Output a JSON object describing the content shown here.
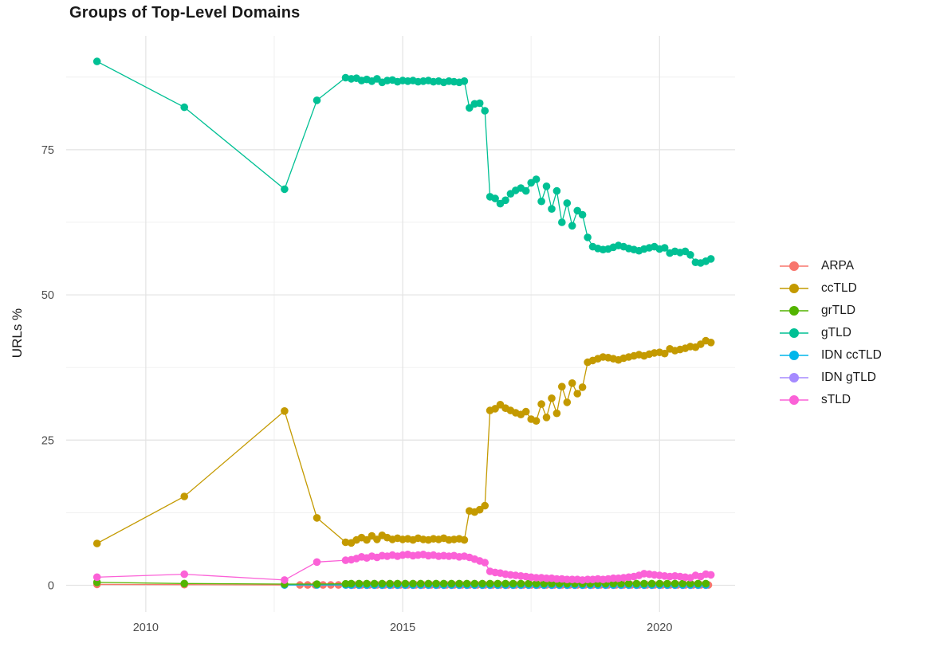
{
  "chart_data": {
    "type": "line",
    "title": "Groups of Top-Level Domains",
    "xlabel": "",
    "ylabel": "URLs %",
    "grid": true,
    "legend_position": "right",
    "xlim": [
      2008.45,
      2021.47
    ],
    "ylim": [
      -4.6,
      94.6
    ],
    "x_ticks": [
      [
        2010,
        "2010"
      ],
      [
        2015,
        "2015"
      ],
      [
        2020,
        "2020"
      ]
    ],
    "x_minor": [
      2012.5,
      2017.5
    ],
    "y_ticks": [
      [
        0,
        "0"
      ],
      [
        25,
        "25"
      ],
      [
        50,
        "50"
      ],
      [
        75,
        "75"
      ]
    ],
    "y_minor": [
      12.5,
      37.5,
      62.5,
      87.5
    ],
    "draw_order": [
      "ARPA",
      "IDN gTLD",
      "IDN ccTLD",
      "grTLD",
      "sTLD",
      "ccTLD",
      "gTLD"
    ],
    "series": [
      {
        "name": "ARPA",
        "color": "#F8766D",
        "points": [
          [
            2009.05,
            0.15
          ],
          [
            2010.75,
            0.1
          ],
          [
            2012.7,
            0.05
          ]
        ],
        "flat": {
          "from": 2013.0,
          "to": 2021.0,
          "step": 0.15,
          "value": 0.05
        }
      },
      {
        "name": "ccTLD",
        "color": "#C49A00",
        "points": [
          [
            2009.05,
            7.2
          ],
          [
            2010.75,
            15.3
          ],
          [
            2012.7,
            30
          ],
          [
            2013.33,
            11.6
          ],
          [
            2013.89,
            7.4
          ],
          [
            2014,
            7.3
          ],
          [
            2014.1,
            7.8
          ],
          [
            2014.2,
            8.2
          ],
          [
            2014.3,
            7.8
          ],
          [
            2014.4,
            8.5
          ],
          [
            2014.5,
            7.9
          ],
          [
            2014.6,
            8.6
          ],
          [
            2014.7,
            8.2
          ],
          [
            2014.8,
            7.9
          ],
          [
            2014.9,
            8.1
          ],
          [
            2015,
            7.9
          ],
          [
            2015.1,
            8
          ],
          [
            2015.2,
            7.8
          ],
          [
            2015.3,
            8.1
          ],
          [
            2015.4,
            7.9
          ],
          [
            2015.5,
            7.8
          ],
          [
            2015.6,
            8
          ],
          [
            2015.7,
            7.9
          ],
          [
            2015.8,
            8.1
          ],
          [
            2015.9,
            7.8
          ],
          [
            2016,
            7.9
          ],
          [
            2016.1,
            8
          ],
          [
            2016.2,
            7.8
          ],
          [
            2016.3,
            12.8
          ],
          [
            2016.4,
            12.6
          ],
          [
            2016.5,
            13
          ],
          [
            2016.6,
            13.7
          ],
          [
            2016.7,
            30.1
          ],
          [
            2016.8,
            30.4
          ],
          [
            2016.9,
            31.1
          ],
          [
            2017,
            30.5
          ],
          [
            2017.1,
            30.1
          ],
          [
            2017.2,
            29.7
          ],
          [
            2017.3,
            29.4
          ],
          [
            2017.4,
            29.9
          ],
          [
            2017.5,
            28.6
          ],
          [
            2017.6,
            28.3
          ],
          [
            2017.7,
            31.2
          ],
          [
            2017.8,
            28.9
          ],
          [
            2017.9,
            32.2
          ],
          [
            2018,
            29.6
          ],
          [
            2018.1,
            34.2
          ],
          [
            2018.2,
            31.5
          ],
          [
            2018.3,
            34.8
          ],
          [
            2018.4,
            33
          ],
          [
            2018.5,
            34.1
          ],
          [
            2018.6,
            38.4
          ],
          [
            2018.7,
            38.7
          ],
          [
            2018.8,
            39
          ],
          [
            2018.9,
            39.3
          ],
          [
            2019,
            39.2
          ],
          [
            2019.1,
            39
          ],
          [
            2019.2,
            38.8
          ],
          [
            2019.3,
            39.1
          ],
          [
            2019.4,
            39.3
          ],
          [
            2019.5,
            39.5
          ],
          [
            2019.6,
            39.7
          ],
          [
            2019.7,
            39.5
          ],
          [
            2019.8,
            39.8
          ],
          [
            2019.9,
            40
          ],
          [
            2020,
            40.1
          ],
          [
            2020.1,
            39.9
          ],
          [
            2020.2,
            40.7
          ],
          [
            2020.3,
            40.4
          ],
          [
            2020.4,
            40.6
          ],
          [
            2020.5,
            40.8
          ],
          [
            2020.6,
            41.1
          ],
          [
            2020.7,
            41
          ],
          [
            2020.8,
            41.5
          ],
          [
            2020.9,
            42.1
          ],
          [
            2021,
            41.8
          ]
        ]
      },
      {
        "name": "grTLD",
        "color": "#53B400",
        "points": [
          [
            2009.05,
            0.5
          ],
          [
            2010.75,
            0.3
          ],
          [
            2012.7,
            0.2
          ],
          [
            2013.33,
            0.2
          ],
          [
            2013.89,
            0.25
          ]
        ],
        "flat": {
          "from": 2014.0,
          "to": 2021.0,
          "step": 0.15,
          "value": 0.28
        }
      },
      {
        "name": "gTLD",
        "color": "#00C094",
        "points": [
          [
            2009.05,
            90.2
          ],
          [
            2010.75,
            82.3
          ],
          [
            2012.7,
            68.2
          ],
          [
            2013.33,
            83.5
          ],
          [
            2013.89,
            87.4
          ],
          [
            2014,
            87.2
          ],
          [
            2014.1,
            87.3
          ],
          [
            2014.2,
            86.9
          ],
          [
            2014.3,
            87.1
          ],
          [
            2014.4,
            86.8
          ],
          [
            2014.5,
            87.2
          ],
          [
            2014.6,
            86.6
          ],
          [
            2014.7,
            86.9
          ],
          [
            2014.8,
            87
          ],
          [
            2014.9,
            86.7
          ],
          [
            2015,
            86.9
          ],
          [
            2015.1,
            86.8
          ],
          [
            2015.2,
            86.9
          ],
          [
            2015.3,
            86.7
          ],
          [
            2015.4,
            86.8
          ],
          [
            2015.5,
            86.9
          ],
          [
            2015.6,
            86.7
          ],
          [
            2015.7,
            86.8
          ],
          [
            2015.8,
            86.6
          ],
          [
            2015.9,
            86.8
          ],
          [
            2016,
            86.7
          ],
          [
            2016.1,
            86.6
          ],
          [
            2016.2,
            86.8
          ],
          [
            2016.3,
            82.2
          ],
          [
            2016.4,
            82.9
          ],
          [
            2016.5,
            83
          ],
          [
            2016.6,
            81.7
          ],
          [
            2016.7,
            66.9
          ],
          [
            2016.8,
            66.6
          ],
          [
            2016.9,
            65.7
          ],
          [
            2017,
            66.3
          ],
          [
            2017.1,
            67.4
          ],
          [
            2017.2,
            68
          ],
          [
            2017.3,
            68.4
          ],
          [
            2017.4,
            67.9
          ],
          [
            2017.5,
            69.3
          ],
          [
            2017.6,
            69.9
          ],
          [
            2017.7,
            66.1
          ],
          [
            2017.8,
            68.7
          ],
          [
            2017.9,
            64.8
          ],
          [
            2018,
            67.9
          ],
          [
            2018.1,
            62.5
          ],
          [
            2018.2,
            65.8
          ],
          [
            2018.3,
            61.9
          ],
          [
            2018.4,
            64.5
          ],
          [
            2018.5,
            63.8
          ],
          [
            2018.6,
            59.9
          ],
          [
            2018.7,
            58.3
          ],
          [
            2018.8,
            58
          ],
          [
            2018.9,
            57.8
          ],
          [
            2019,
            57.9
          ],
          [
            2019.1,
            58.2
          ],
          [
            2019.2,
            58.5
          ],
          [
            2019.3,
            58.3
          ],
          [
            2019.4,
            58
          ],
          [
            2019.5,
            57.8
          ],
          [
            2019.6,
            57.6
          ],
          [
            2019.7,
            57.9
          ],
          [
            2019.8,
            58.1
          ],
          [
            2019.9,
            58.3
          ],
          [
            2020,
            57.9
          ],
          [
            2020.1,
            58.1
          ],
          [
            2020.2,
            57.2
          ],
          [
            2020.3,
            57.5
          ],
          [
            2020.4,
            57.3
          ],
          [
            2020.5,
            57.5
          ],
          [
            2020.6,
            56.9
          ],
          [
            2020.7,
            55.6
          ],
          [
            2020.8,
            55.5
          ],
          [
            2020.9,
            55.8
          ],
          [
            2021,
            56.2
          ]
        ]
      },
      {
        "name": "IDN ccTLD",
        "color": "#00B6EB",
        "points": [
          [
            2012.7,
            0.05
          ],
          [
            2013.33,
            0.05
          ],
          [
            2013.89,
            0.05
          ]
        ],
        "flat": {
          "from": 2014.0,
          "to": 2021.0,
          "step": 0.15,
          "value": 0.05
        }
      },
      {
        "name": "IDN gTLD",
        "color": "#A58AFF",
        "points": [],
        "flat": {
          "from": 2014.0,
          "to": 2021.0,
          "step": 0.15,
          "value": 0.0
        }
      },
      {
        "name": "sTLD",
        "color": "#FB61D7",
        "points": [
          [
            2009.05,
            1.4
          ],
          [
            2010.75,
            1.9
          ],
          [
            2012.7,
            0.9
          ],
          [
            2013.33,
            4
          ],
          [
            2013.89,
            4.3
          ],
          [
            2014,
            4.4
          ],
          [
            2014.1,
            4.6
          ],
          [
            2014.2,
            4.9
          ],
          [
            2014.3,
            4.7
          ],
          [
            2014.4,
            5
          ],
          [
            2014.5,
            4.8
          ],
          [
            2014.6,
            5.1
          ],
          [
            2014.7,
            5
          ],
          [
            2014.8,
            5.2
          ],
          [
            2014.9,
            5
          ],
          [
            2015,
            5.2
          ],
          [
            2015.1,
            5.3
          ],
          [
            2015.2,
            5.1
          ],
          [
            2015.3,
            5.2
          ],
          [
            2015.4,
            5.3
          ],
          [
            2015.5,
            5.1
          ],
          [
            2015.6,
            5.2
          ],
          [
            2015.7,
            5
          ],
          [
            2015.8,
            5.1
          ],
          [
            2015.9,
            5
          ],
          [
            2016,
            5.1
          ],
          [
            2016.1,
            4.9
          ],
          [
            2016.2,
            5
          ],
          [
            2016.3,
            4.8
          ],
          [
            2016.4,
            4.5
          ],
          [
            2016.5,
            4.2
          ],
          [
            2016.6,
            3.9
          ],
          [
            2016.7,
            2.4
          ],
          [
            2016.8,
            2.2
          ],
          [
            2016.9,
            2.1
          ],
          [
            2017,
            1.9
          ],
          [
            2017.1,
            1.8
          ],
          [
            2017.2,
            1.7
          ],
          [
            2017.3,
            1.6
          ],
          [
            2017.4,
            1.5
          ],
          [
            2017.5,
            1.4
          ],
          [
            2017.6,
            1.3
          ],
          [
            2017.7,
            1.3
          ],
          [
            2017.8,
            1.2
          ],
          [
            2017.9,
            1.2
          ],
          [
            2018,
            1.1
          ],
          [
            2018.1,
            1.1
          ],
          [
            2018.2,
            1
          ],
          [
            2018.3,
            1
          ],
          [
            2018.4,
            1
          ],
          [
            2018.5,
            0.9
          ],
          [
            2018.6,
            1
          ],
          [
            2018.7,
            1
          ],
          [
            2018.8,
            1.1
          ],
          [
            2018.9,
            1
          ],
          [
            2019,
            1.1
          ],
          [
            2019.1,
            1.2
          ],
          [
            2019.2,
            1.2
          ],
          [
            2019.3,
            1.3
          ],
          [
            2019.4,
            1.4
          ],
          [
            2019.5,
            1.5
          ],
          [
            2019.6,
            1.7
          ],
          [
            2019.7,
            2
          ],
          [
            2019.8,
            1.9
          ],
          [
            2019.9,
            1.8
          ],
          [
            2020,
            1.7
          ],
          [
            2020.1,
            1.6
          ],
          [
            2020.2,
            1.5
          ],
          [
            2020.3,
            1.6
          ],
          [
            2020.4,
            1.5
          ],
          [
            2020.5,
            1.4
          ],
          [
            2020.6,
            1.3
          ],
          [
            2020.7,
            1.7
          ],
          [
            2020.8,
            1.5
          ],
          [
            2020.9,
            1.9
          ],
          [
            2021,
            1.8
          ]
        ]
      }
    ],
    "style": {
      "grid_major_color": "#e3e3e3",
      "grid_minor_color": "#efefef",
      "point_radius": 4.8,
      "line_width": 1.3
    }
  }
}
